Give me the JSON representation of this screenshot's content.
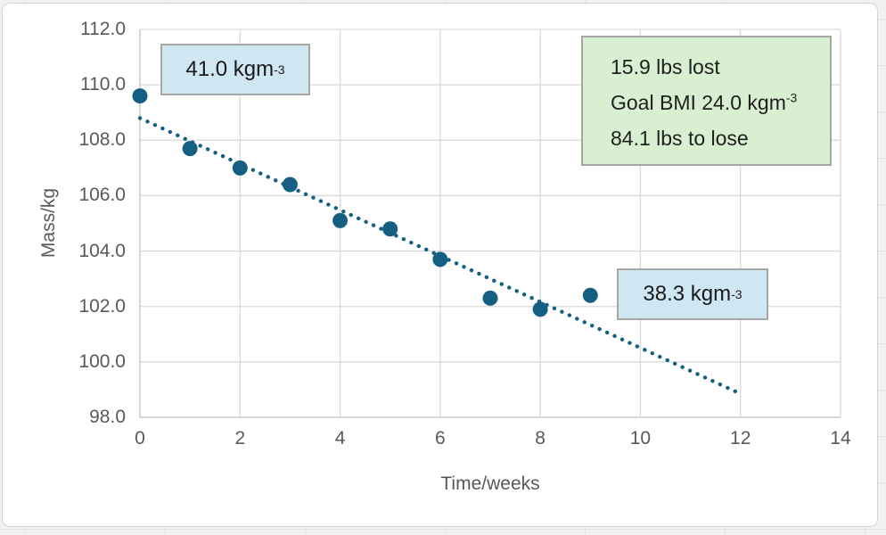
{
  "chart_data": {
    "type": "scatter",
    "title": "",
    "xlabel": "Time/weeks",
    "ylabel": "Mass/kg",
    "xlim": [
      0,
      14
    ],
    "ylim": [
      98,
      112
    ],
    "x_ticks": [
      "0",
      "2",
      "4",
      "6",
      "8",
      "10",
      "12",
      "14"
    ],
    "y_ticks": [
      "112.0",
      "110.0",
      "108.0",
      "106.0",
      "104.0",
      "102.0",
      "100.0",
      "98.0"
    ],
    "grid": true,
    "legend": false,
    "series": [
      {
        "name": "Mass",
        "x": [
          0,
          1,
          2,
          3,
          4,
          5,
          6,
          7,
          8,
          9
        ],
        "y": [
          109.6,
          107.7,
          107.0,
          106.4,
          105.1,
          104.8,
          103.7,
          102.3,
          101.9,
          102.4
        ],
        "marker": "circle",
        "marker_color": "#156082"
      }
    ],
    "trendline": {
      "style": "dotted",
      "color": "#156082",
      "x1": 0,
      "y1": 108.8,
      "x2": 12,
      "y2": 98.85
    }
  },
  "annotations": {
    "bmi_start": {
      "main": "41.0 kgm",
      "sup": "-3"
    },
    "bmi_current": {
      "main": "38.3 kgm",
      "sup": "-3"
    },
    "summary": {
      "line1": "15.9 lbs lost",
      "line2_main": "Goal BMI 24.0 kgm",
      "line2_sup": "-3",
      "line3": "84.1 lbs to lose"
    }
  },
  "colors": {
    "marker": "#156082",
    "trendline": "#156082",
    "gridline": "#d9d9d9",
    "axis_line": "#bfbfbf",
    "tick_text": "#595959",
    "blue_callout_fill": "#cfe7f3",
    "green_callout_fill": "#d9efd2",
    "callout_border": "#a6a6a6",
    "chart_background": "#ffffff"
  }
}
